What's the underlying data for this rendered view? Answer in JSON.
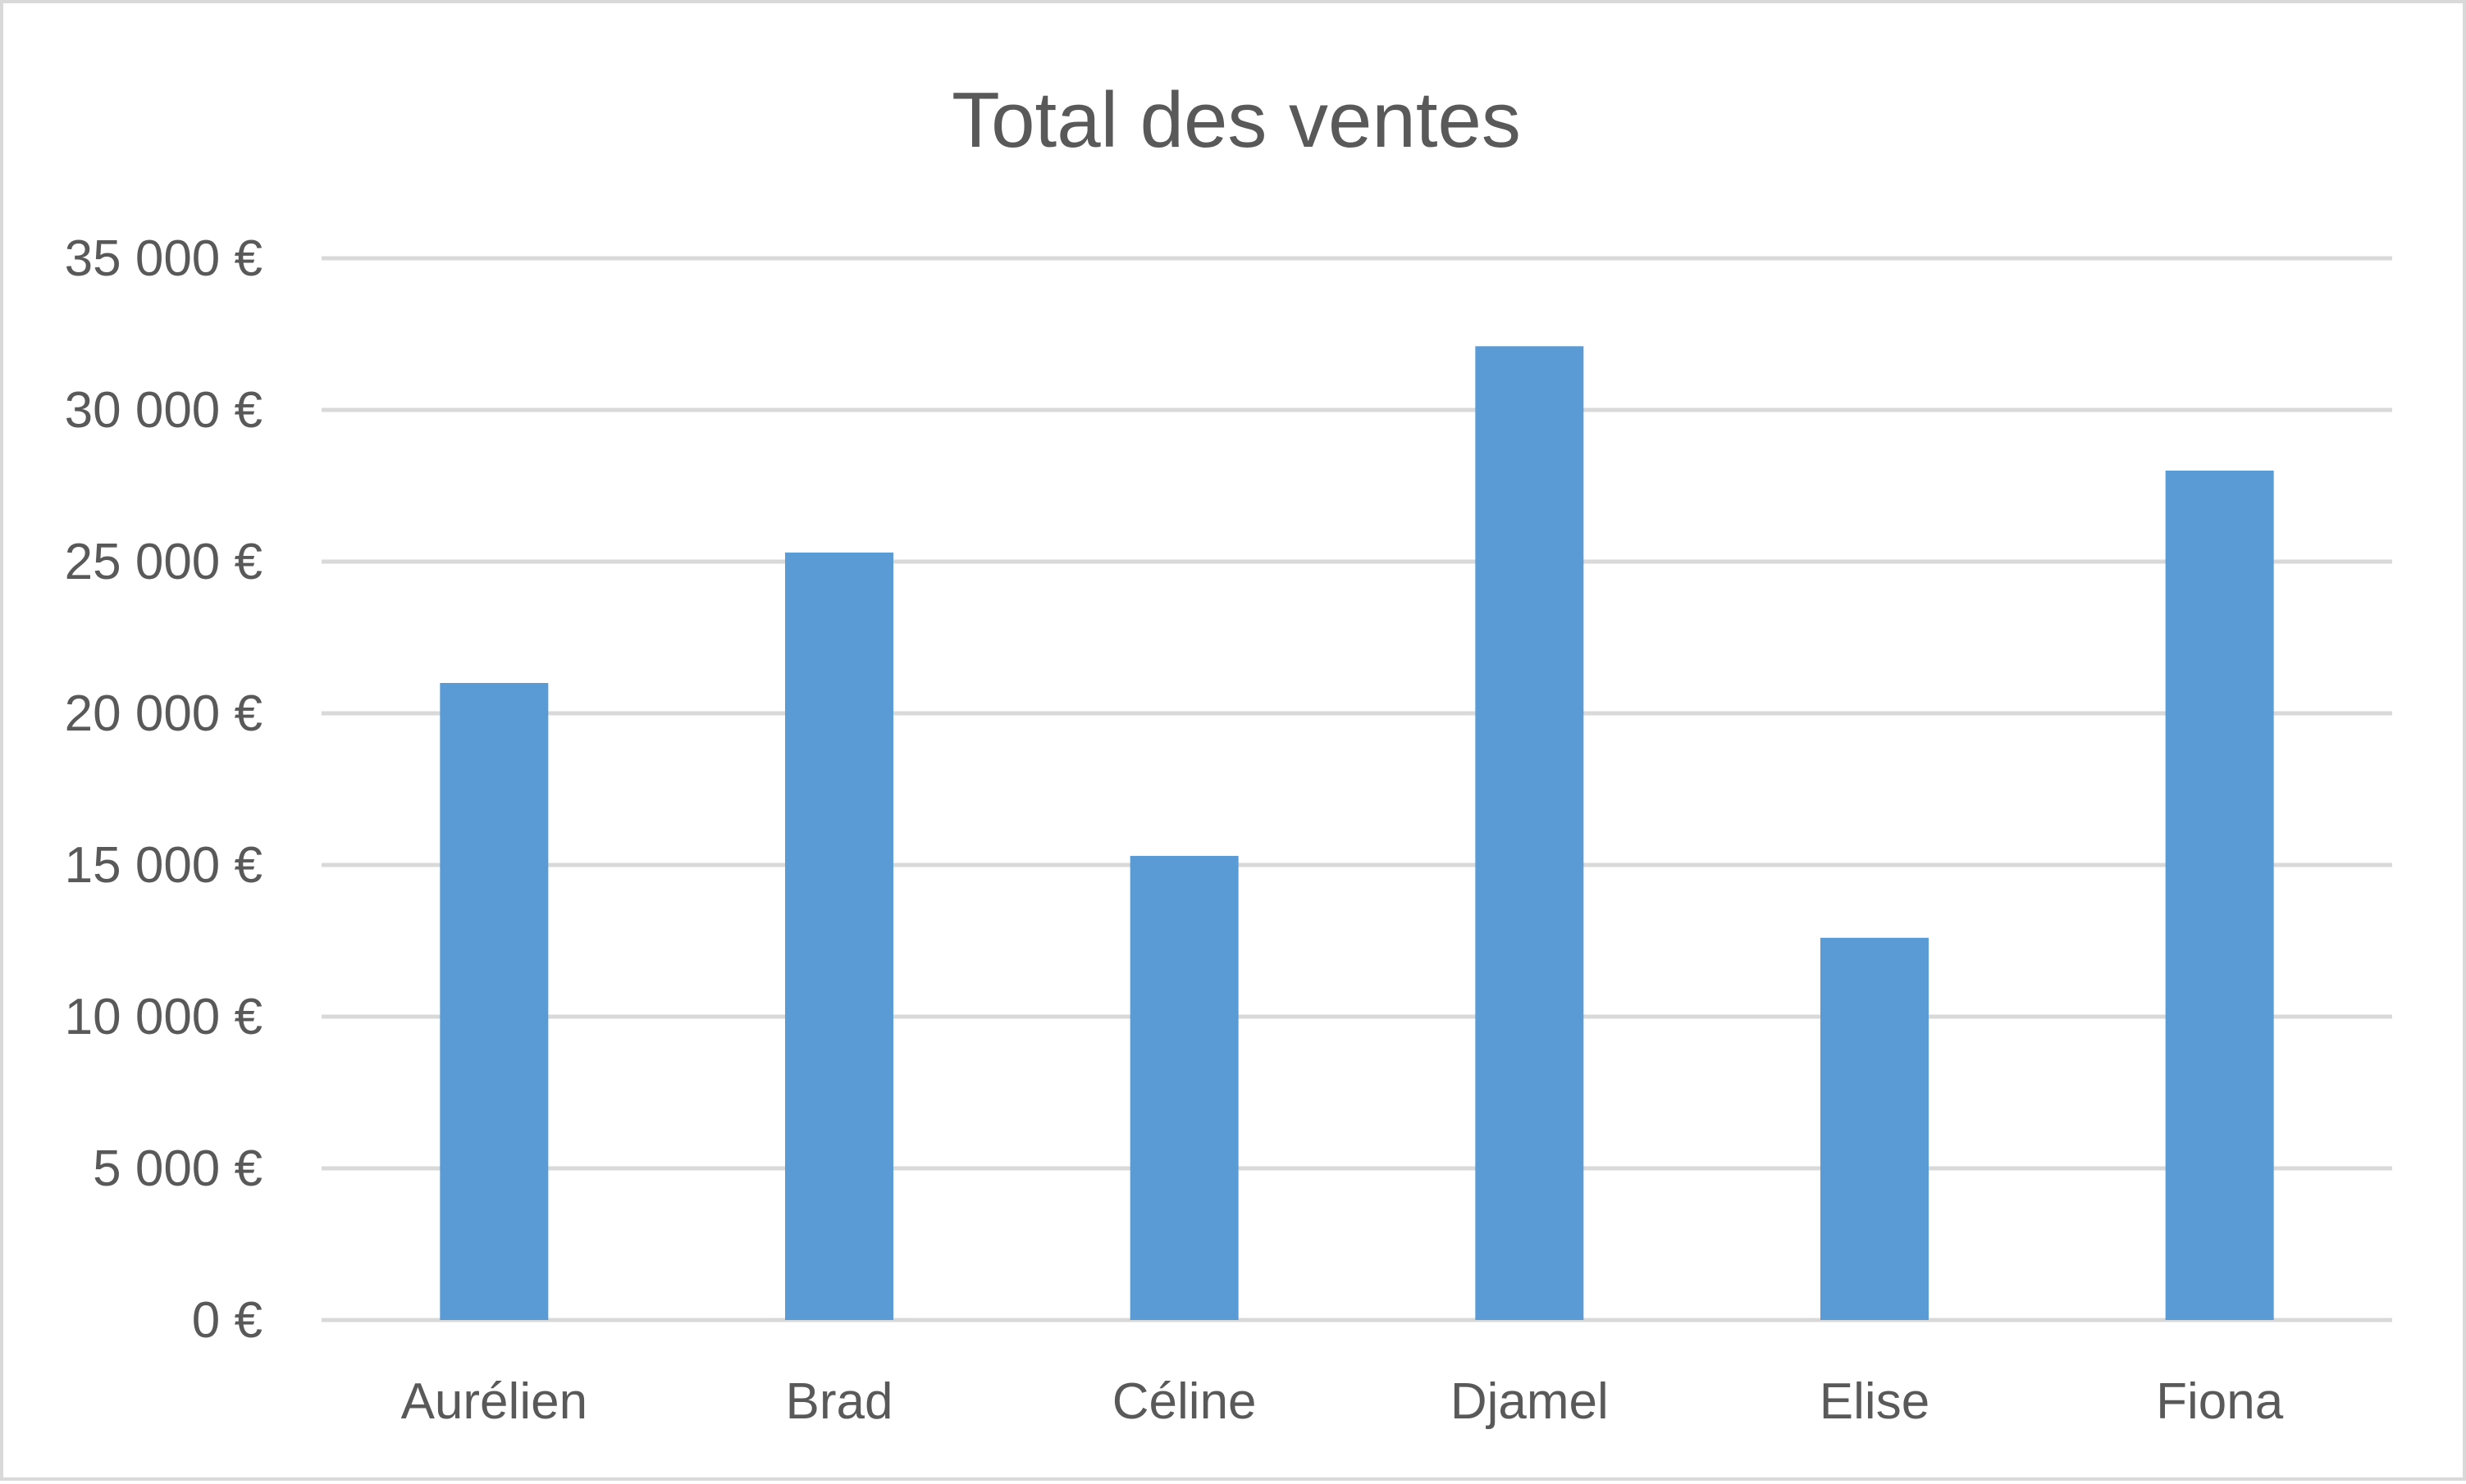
{
  "chart_data": {
    "type": "bar",
    "title": "Total des ventes",
    "xlabel": "",
    "ylabel": "",
    "categories": [
      "Aurélien",
      "Brad",
      "Céline",
      "Djamel",
      "Elise",
      "Fiona"
    ],
    "series": [
      {
        "values": [
          21000,
          25300,
          15300,
          32100,
          12600,
          28000
        ],
        "color": "#5b9bd5"
      }
    ],
    "ylim": [
      0,
      35000
    ],
    "yticks": [
      0,
      5000,
      10000,
      15000,
      20000,
      25000,
      30000,
      35000
    ],
    "ytick_labels": [
      "0 €",
      "5 000 €",
      "10 000 €",
      "15 000 €",
      "20 000 €",
      "25 000 €",
      "30 000 €",
      "35 000 €"
    ],
    "grid": true,
    "legend": "none",
    "colors": {
      "gridline": "#d9d9d9",
      "text": "#595959",
      "border": "#d9d9d9"
    }
  }
}
